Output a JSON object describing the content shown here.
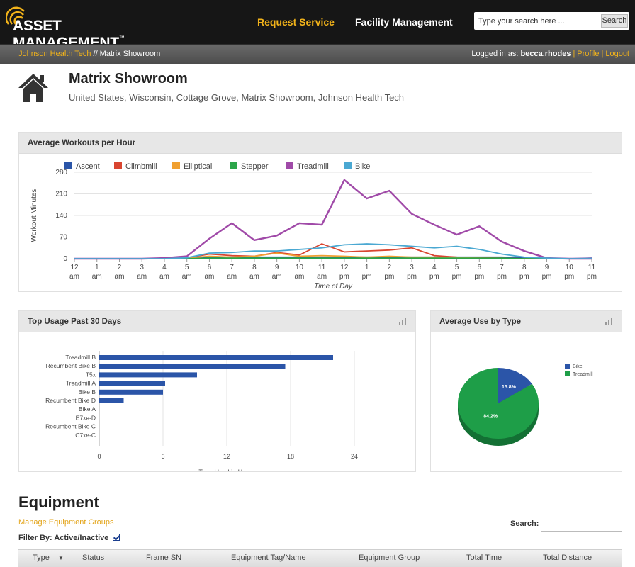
{
  "app": {
    "logo_text": "ASSET MANAGEMENT",
    "trademark": "™",
    "nav": {
      "request_service": "Request Service",
      "facility_management": "Facility Management"
    },
    "search": {
      "placeholder": "Type your search here ...",
      "button": "Search"
    },
    "accent_color": "#f2b31a"
  },
  "breadcrumb": {
    "org": "Johnson Health Tech",
    "separator": "//",
    "location": "Matrix Showroom"
  },
  "user": {
    "logged_in_label": "Logged in as:",
    "username": "becca.rhodes",
    "profile": "Profile",
    "logout": "Logout"
  },
  "header": {
    "title": "Matrix Showroom",
    "subtitle": "United States, Wisconsin, Cottage Grove, Matrix Showroom, Johnson Health Tech"
  },
  "panels": {
    "workouts_title": "Average Workouts per Hour",
    "top_usage_title": "Top Usage Past 30 Days",
    "use_by_type_title": "Average Use by Type"
  },
  "chart_data": [
    {
      "type": "line",
      "title": "Average Workouts per Hour",
      "xlabel": "Time of Day",
      "ylabel": "Workout Minutes",
      "ylim": [
        0,
        280
      ],
      "yticks": [
        0,
        70,
        140,
        210,
        280
      ],
      "grid": true,
      "legend_position": "top-left",
      "categories": [
        "12 am",
        "1 am",
        "2 am",
        "3 am",
        "4 am",
        "5 am",
        "6 am",
        "7 am",
        "8 am",
        "9 am",
        "10 am",
        "11 am",
        "12 pm",
        "1 pm",
        "2 pm",
        "3 pm",
        "4 pm",
        "5 pm",
        "6 pm",
        "7 pm",
        "8 pm",
        "9 pm",
        "10 pm",
        "11 pm"
      ],
      "tick_top": [
        "12",
        "1",
        "2",
        "3",
        "4",
        "5",
        "6",
        "7",
        "8",
        "9",
        "10",
        "11",
        "12",
        "1",
        "2",
        "3",
        "4",
        "5",
        "6",
        "7",
        "8",
        "9",
        "10",
        "11"
      ],
      "tick_bottom": [
        "am",
        "am",
        "am",
        "am",
        "am",
        "am",
        "am",
        "am",
        "am",
        "am",
        "am",
        "am",
        "pm",
        "pm",
        "pm",
        "pm",
        "pm",
        "pm",
        "pm",
        "pm",
        "pm",
        "pm",
        "pm",
        "pm"
      ],
      "series": [
        {
          "name": "Ascent",
          "color": "#2b55a8",
          "values": [
            0,
            0,
            0,
            0,
            0,
            3,
            5,
            5,
            5,
            5,
            5,
            5,
            5,
            5,
            5,
            5,
            5,
            5,
            5,
            5,
            3,
            0,
            0,
            2
          ]
        },
        {
          "name": "Climbmill",
          "color": "#d94530",
          "values": [
            0,
            0,
            0,
            0,
            0,
            3,
            15,
            10,
            8,
            20,
            12,
            48,
            22,
            25,
            28,
            35,
            10,
            5,
            3,
            2,
            0,
            0,
            0,
            0
          ]
        },
        {
          "name": "Elliptical",
          "color": "#f0a030",
          "values": [
            0,
            0,
            0,
            0,
            0,
            2,
            8,
            5,
            8,
            18,
            8,
            10,
            8,
            5,
            8,
            5,
            5,
            3,
            2,
            0,
            0,
            0,
            0,
            0
          ]
        },
        {
          "name": "Stepper",
          "color": "#2ca54a",
          "values": [
            0,
            0,
            0,
            0,
            0,
            0,
            2,
            2,
            2,
            2,
            2,
            2,
            2,
            2,
            2,
            2,
            2,
            2,
            2,
            2,
            0,
            0,
            0,
            0
          ]
        },
        {
          "name": "Treadmill",
          "color": "#a04aa8",
          "values": [
            0,
            0,
            0,
            0,
            2,
            8,
            65,
            115,
            60,
            75,
            115,
            110,
            255,
            195,
            220,
            145,
            110,
            78,
            105,
            55,
            25,
            2,
            0,
            0
          ]
        },
        {
          "name": "Bike",
          "color": "#4aa8d2",
          "values": [
            0,
            0,
            0,
            0,
            0,
            3,
            18,
            20,
            25,
            25,
            30,
            35,
            45,
            48,
            45,
            40,
            35,
            40,
            30,
            15,
            5,
            2,
            0,
            0
          ]
        }
      ]
    },
    {
      "type": "bar",
      "orientation": "horizontal",
      "title": "Top Usage Past 30 Days",
      "xlabel": "Time Used in Hours",
      "xlim": [
        0,
        24
      ],
      "xticks": [
        0,
        6,
        12,
        18,
        24
      ],
      "grid": true,
      "bar_color": "#2b55a8",
      "categories": [
        "Treadmill B",
        "Recumbent Bike B",
        "T5x",
        "Treadmill A",
        "Bike B",
        "Recumbent Bike D",
        "Bike A",
        "E7xe-D",
        "Recumbent Bike C",
        "C7xe-C"
      ],
      "values": [
        22,
        17.5,
        9.2,
        6.2,
        6.0,
        2.3,
        0,
        0,
        0,
        0
      ]
    },
    {
      "type": "pie",
      "title": "Average Use by Type",
      "legend_position": "right",
      "series": [
        {
          "name": "Bike",
          "value": 15.8,
          "label": "15.8%",
          "color": "#2b55a8"
        },
        {
          "name": "Treadmill",
          "value": 84.2,
          "label": "84.2%",
          "color": "#1e9e48"
        }
      ]
    }
  ],
  "equipment": {
    "title": "Equipment",
    "manage_link": "Manage Equipment Groups",
    "filter_label": "Filter By: Active/Inactive",
    "search_label": "Search:",
    "columns": [
      "Type",
      "Status",
      "Frame SN",
      "Equipment Tag/Name",
      "Equipment Group",
      "Total Time",
      "Total Distance"
    ],
    "sort_indicator": "▼"
  }
}
